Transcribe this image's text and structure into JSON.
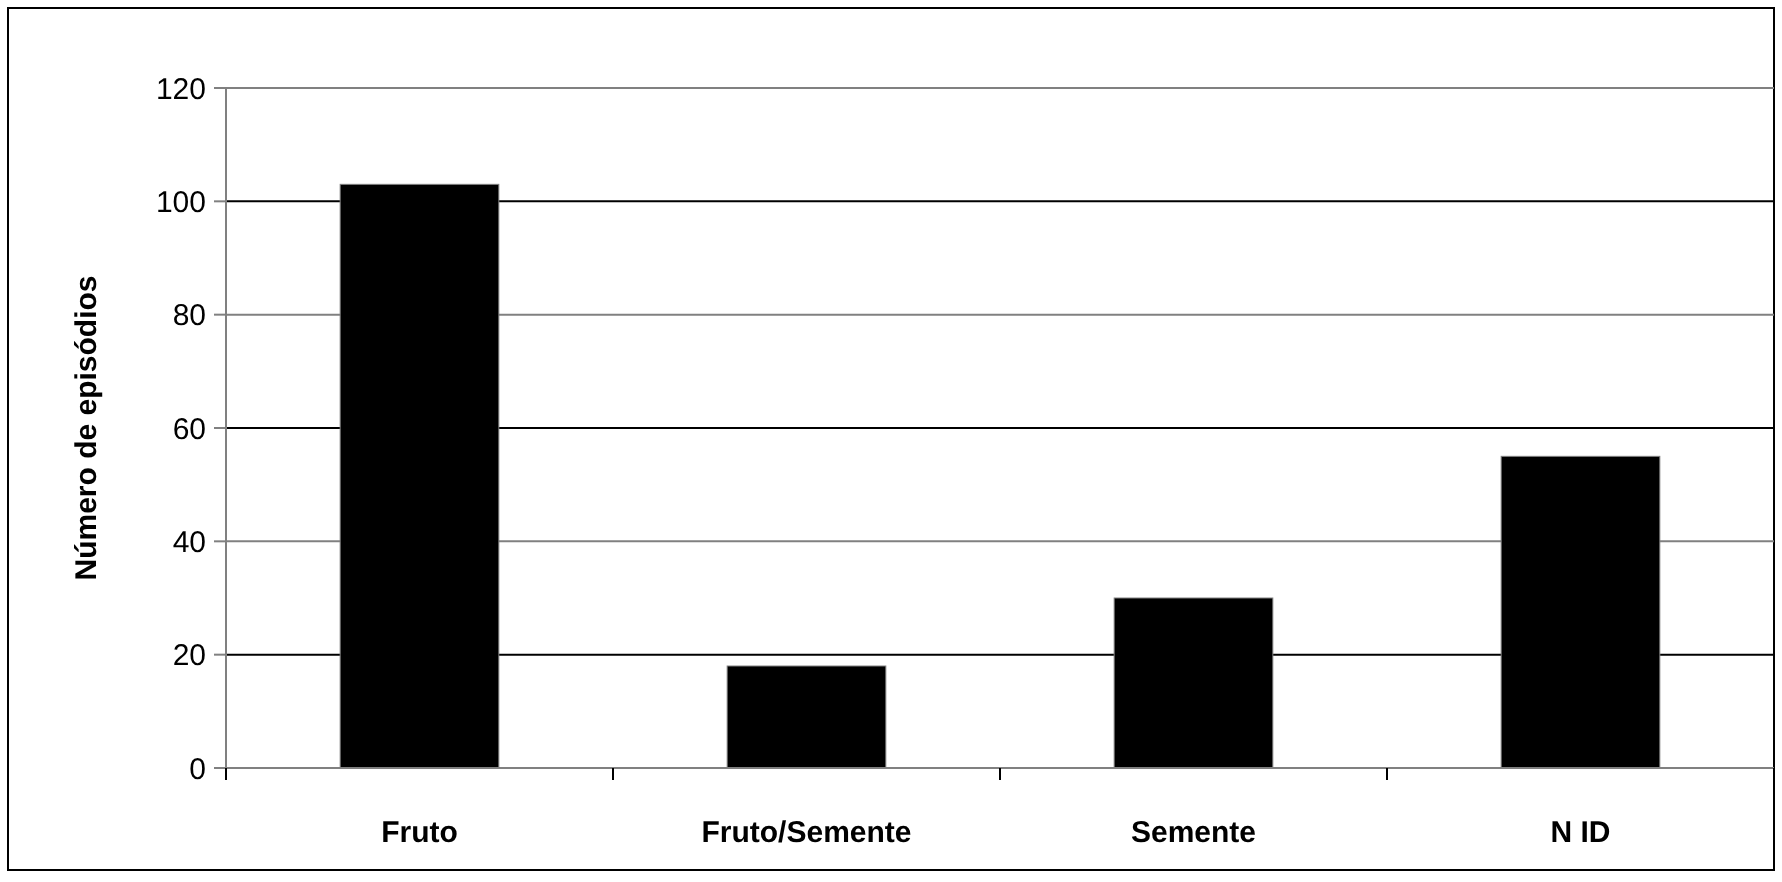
{
  "chart_data": {
    "type": "bar",
    "ylabel": "Número de episódios",
    "categories": [
      "Fruto",
      "Fruto/Semente",
      "Semente",
      "N ID"
    ],
    "values": [
      103,
      18,
      30,
      55
    ],
    "color": "#000000",
    "ylim": [
      0,
      120
    ],
    "yticks": [
      0,
      20,
      40,
      60,
      80,
      100,
      120
    ],
    "grid": "y"
  }
}
